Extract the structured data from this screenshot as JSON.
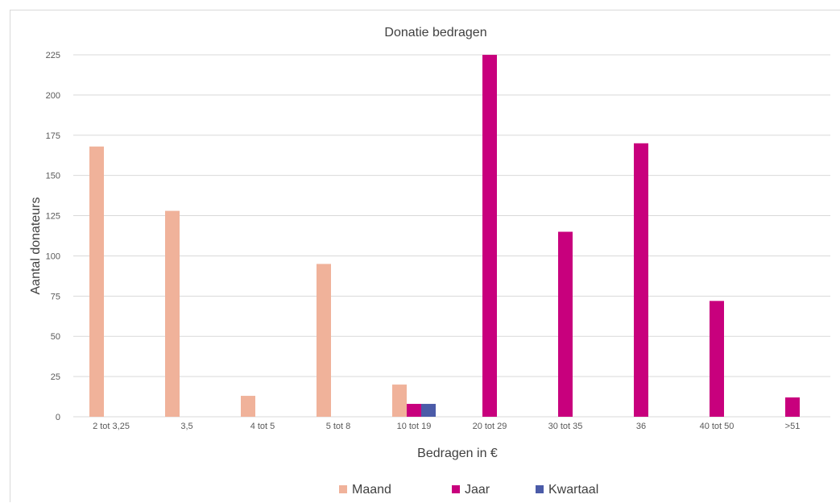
{
  "chart_data": {
    "type": "bar",
    "title": "Donatie bedragen",
    "xlabel": "Bedragen in €",
    "ylabel": "Aantal donateurs",
    "ylim": [
      0,
      225
    ],
    "yticks": [
      0,
      25,
      50,
      75,
      100,
      125,
      150,
      175,
      200,
      225
    ],
    "grid": true,
    "legend_position": "bottom",
    "categories": [
      "2 tot 3,25",
      "3,5",
      "4 tot 5",
      "5 tot 8",
      "10 tot 19",
      "20 tot 29",
      "30 tot 35",
      "36",
      "40 tot 50",
      ">51"
    ],
    "series": [
      {
        "name": "Maand",
        "color": "#f0b29a",
        "values": [
          168,
          128,
          13,
          95,
          20,
          0,
          0,
          0,
          0,
          0
        ]
      },
      {
        "name": "Jaar",
        "color": "#c8007d",
        "values": [
          0,
          0,
          0,
          0,
          8,
          225,
          115,
          170,
          72,
          12
        ]
      },
      {
        "name": "Kwartaal",
        "color": "#4b5ba8",
        "values": [
          0,
          0,
          0,
          0,
          8,
          0,
          0,
          0,
          0,
          0
        ]
      }
    ]
  }
}
